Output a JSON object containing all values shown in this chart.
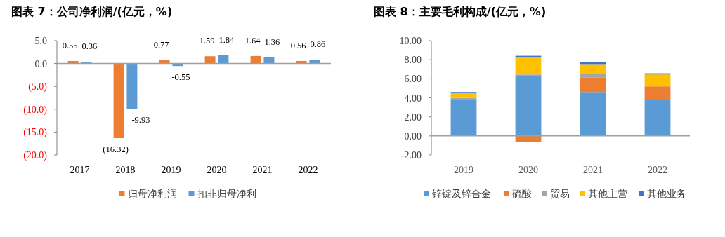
{
  "chart_data": [
    {
      "type": "bar",
      "title": "图表 7：公司净利润/(亿元，%)",
      "categories": [
        "2017",
        "2018",
        "2019",
        "2020",
        "2021",
        "2022"
      ],
      "series": [
        {
          "name": "归母净利润",
          "color": "#ed7d31",
          "values": [
            0.55,
            -16.32,
            0.77,
            1.59,
            1.64,
            0.56
          ],
          "value_labels": [
            "0.55",
            "(16.32)",
            "0.77",
            "1.59",
            "1.64",
            "0.56"
          ]
        },
        {
          "name": "扣非归母净利",
          "color": "#5b9bd5",
          "values": [
            0.36,
            -9.93,
            -0.55,
            1.84,
            1.36,
            0.86
          ],
          "value_labels": [
            "0.36",
            "-9.93",
            "-0.55",
            "1.84",
            "1.36",
            "0.86"
          ]
        }
      ],
      "ylim": [
        -20,
        5
      ],
      "yticks": [
        {
          "value": 5,
          "label": "5.0"
        },
        {
          "value": 0,
          "label": "0.0"
        },
        {
          "value": -5,
          "label": "(5.0)"
        },
        {
          "value": -10,
          "label": "(10.0)"
        },
        {
          "value": -15,
          "label": "(15.0)"
        },
        {
          "value": -20,
          "label": "(20.0)"
        }
      ],
      "legend": "bottom"
    },
    {
      "type": "bar",
      "title": "图表 8：主要毛利构成/(亿元，%)",
      "categories": [
        "2019",
        "2020",
        "2021",
        "2022"
      ],
      "stacked": true,
      "series": [
        {
          "name": "锌锭及锌合金",
          "color": "#5b9bd5",
          "values": [
            3.8,
            6.25,
            4.61,
            3.75
          ]
        },
        {
          "name": "硫酸",
          "color": "#ed7d31",
          "values": [
            0,
            -0.61,
            1.54,
            1.45
          ]
        },
        {
          "name": "贸易",
          "color": "#a5a5a5",
          "values": [
            0.2,
            0.2,
            0.39,
            0
          ]
        },
        {
          "name": "其他主营",
          "color": "#ffc000",
          "values": [
            0.49,
            1.84,
            1.0,
            1.25
          ]
        },
        {
          "name": "其他业务",
          "color": "#4472c4",
          "values": [
            0.12,
            0.12,
            0.2,
            0.12
          ]
        }
      ],
      "ylim": [
        -2,
        10
      ],
      "yticks": [
        {
          "value": 10,
          "label": "10.00"
        },
        {
          "value": 8,
          "label": "8.00"
        },
        {
          "value": 6,
          "label": "6.00"
        },
        {
          "value": 4,
          "label": "4.00"
        },
        {
          "value": 2,
          "label": "2.00"
        },
        {
          "value": 0,
          "label": "0.00"
        },
        {
          "value": -2,
          "label": "-2.00"
        }
      ],
      "legend": "bottom"
    }
  ]
}
